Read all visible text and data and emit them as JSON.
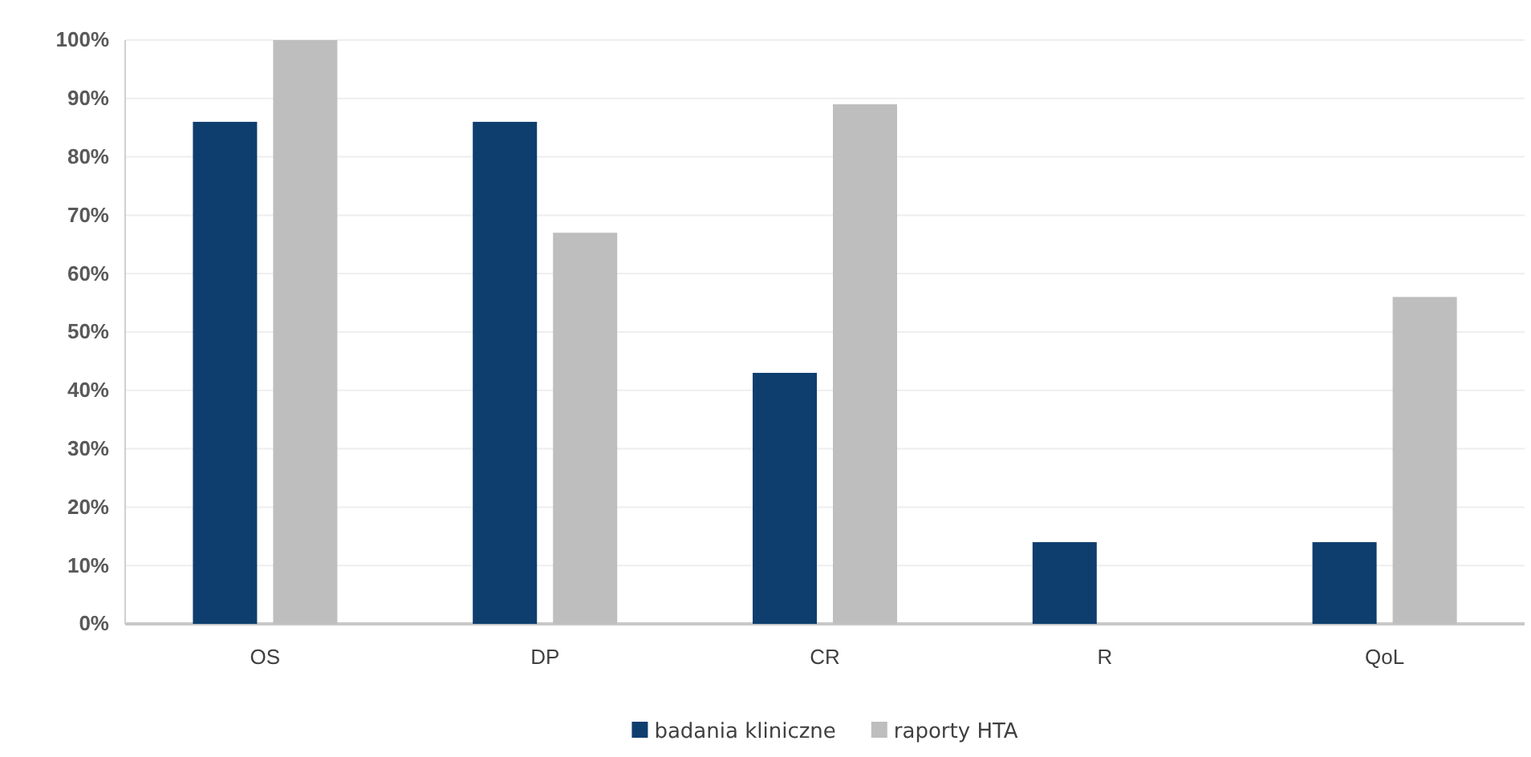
{
  "chart_data": {
    "type": "bar",
    "categories": [
      "OS",
      "DP",
      "CR",
      "R",
      "QoL"
    ],
    "series": [
      {
        "name": "badania kliniczne",
        "color": "#0e3e6e",
        "values": [
          86,
          86,
          43,
          14,
          14
        ]
      },
      {
        "name": "raporty HTA",
        "color": "#bebebe",
        "values": [
          100,
          67,
          89,
          0,
          56
        ]
      }
    ],
    "ylim": [
      0,
      100
    ],
    "yticks": [
      {
        "value": 0,
        "label": "0%"
      },
      {
        "value": 10,
        "label": "10%"
      },
      {
        "value": 20,
        "label": "20%"
      },
      {
        "value": 30,
        "label": "30%"
      },
      {
        "value": 40,
        "label": "40%"
      },
      {
        "value": 50,
        "label": "50%"
      },
      {
        "value": 60,
        "label": "60%"
      },
      {
        "value": 70,
        "label": "70%"
      },
      {
        "value": 80,
        "label": "80%"
      },
      {
        "value": 90,
        "label": "90%"
      },
      {
        "value": 100,
        "label": "100%"
      }
    ],
    "grid": "y",
    "legend": "bottom"
  }
}
